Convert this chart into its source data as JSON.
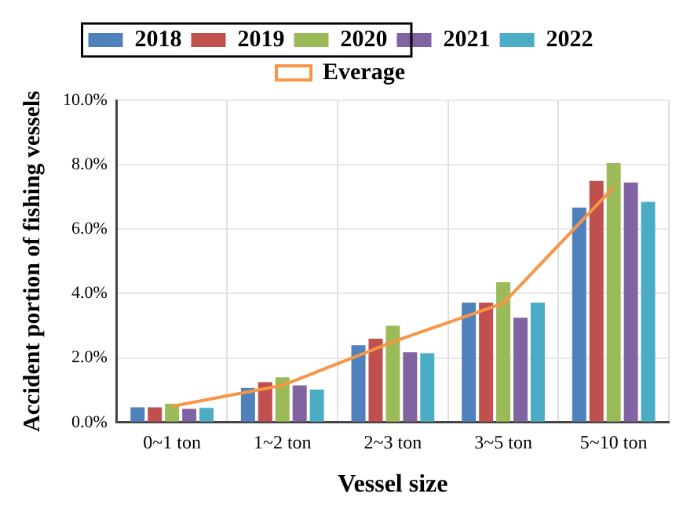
{
  "chart_data": {
    "type": "bar",
    "xlabel": "Vessel size",
    "ylabel": "Accident portion of fishing vessels",
    "categories": [
      "0~1 ton",
      "1~2 ton",
      "2~3 ton",
      "3~5 ton",
      "5~10 ton"
    ],
    "series": [
      {
        "name": "2018",
        "color": "#4f81bd",
        "values": [
          0.47,
          1.07,
          2.4,
          3.72,
          6.67
        ]
      },
      {
        "name": "2019",
        "color": "#c0504d",
        "values": [
          0.47,
          1.25,
          2.6,
          3.72,
          7.5
        ]
      },
      {
        "name": "2020",
        "color": "#9bbb59",
        "values": [
          0.58,
          1.4,
          3.0,
          4.35,
          8.05
        ]
      },
      {
        "name": "2021",
        "color": "#8064a2",
        "values": [
          0.42,
          1.15,
          2.18,
          3.25,
          7.45
        ]
      },
      {
        "name": "2022",
        "color": "#4bacc6",
        "values": [
          0.45,
          1.02,
          2.15,
          3.72,
          6.85
        ]
      },
      {
        "name": "Everage",
        "type": "line",
        "color": "#f79646",
        "values": [
          0.5,
          1.15,
          2.5,
          3.7,
          7.3
        ]
      }
    ],
    "ylim": [
      0,
      10
    ],
    "yticks": [
      {
        "value": 0,
        "label": "0.0%"
      },
      {
        "value": 2,
        "label": "2.0%"
      },
      {
        "value": 4,
        "label": "4.0%"
      },
      {
        "value": 6,
        "label": "6.0%"
      },
      {
        "value": 8,
        "label": "8.0%"
      },
      {
        "value": 10,
        "label": "10.0%"
      }
    ],
    "grid": true,
    "legend": "top",
    "marker": "none"
  }
}
